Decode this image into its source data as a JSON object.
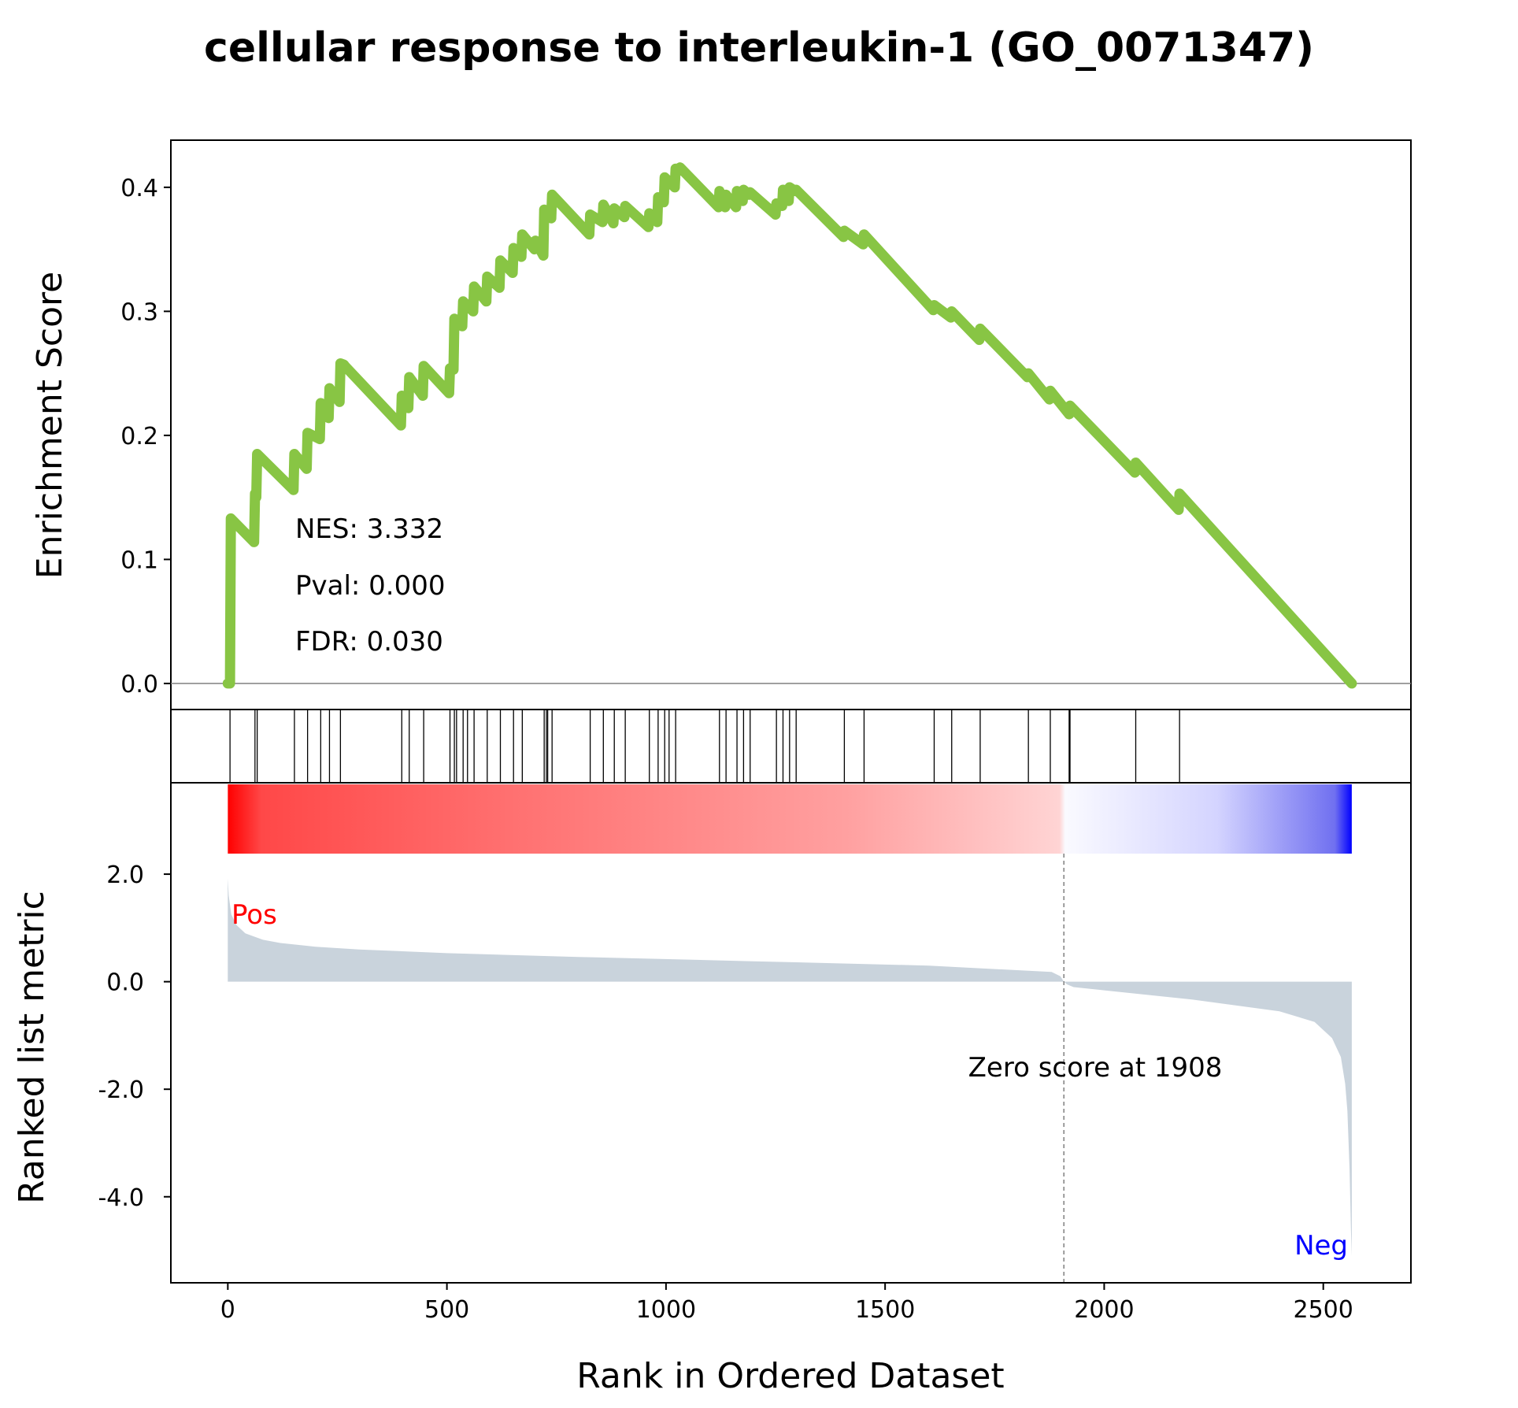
{
  "chart_data": {
    "type": "line",
    "title": "cellular response to interleukin-1 (GO_0071347)",
    "xlabel": "Rank in Ordered Dataset",
    "x_ticks": [
      0,
      500,
      1000,
      1500,
      2000,
      2500
    ],
    "xlim": [
      -130,
      2700
    ],
    "es_panel": {
      "ylabel": "Enrichment Score",
      "y_ticks": [
        "0.0",
        "0.1",
        "0.2",
        "0.3",
        "0.4"
      ],
      "y_tick_values": [
        0.0,
        0.1,
        0.2,
        0.3,
        0.4
      ],
      "ylim": [
        -0.021,
        0.438
      ],
      "line_color": "#88c544",
      "series": [
        {
          "x": [
            0,
            5,
            7,
            60,
            62,
            65,
            67,
            150,
            152,
            180,
            182,
            210,
            212,
            230,
            232,
            255,
            257,
            265,
            267,
            395,
            397,
            412,
            414,
            445,
            447,
            505,
            507,
            515,
            517,
            535,
            537,
            560,
            562,
            590,
            592,
            620,
            622,
            650,
            652,
            670,
            672,
            700,
            702,
            720,
            722,
            738,
            740,
            825,
            827,
            855,
            857,
            880,
            882,
            905,
            907,
            960,
            962,
            980,
            982,
            995,
            997,
            1020,
            1022,
            1030,
            1032,
            1120,
            1122,
            1135,
            1137,
            1160,
            1162,
            1175,
            1177,
            1190,
            1192,
            1250,
            1252,
            1265,
            1267,
            1280,
            1282,
            1295,
            1297,
            1405,
            1407,
            1450,
            1452,
            1610,
            1612,
            1650,
            1652,
            1715,
            1717,
            1825,
            1827,
            1875,
            1877,
            1920,
            1922,
            2070,
            2072,
            2170,
            2172,
            2565
          ],
          "y": [
            0.0,
            0.0,
            0.133,
            0.114,
            0.153,
            0.15,
            0.185,
            0.156,
            0.185,
            0.173,
            0.202,
            0.197,
            0.226,
            0.214,
            0.238,
            0.227,
            0.258,
            0.257,
            0.256,
            0.208,
            0.232,
            0.222,
            0.247,
            0.232,
            0.256,
            0.234,
            0.254,
            0.253,
            0.294,
            0.288,
            0.308,
            0.3,
            0.32,
            0.308,
            0.328,
            0.319,
            0.341,
            0.331,
            0.351,
            0.344,
            0.362,
            0.35,
            0.357,
            0.345,
            0.382,
            0.375,
            0.394,
            0.362,
            0.378,
            0.372,
            0.386,
            0.371,
            0.383,
            0.376,
            0.385,
            0.368,
            0.379,
            0.372,
            0.392,
            0.388,
            0.408,
            0.4,
            0.415,
            0.414,
            0.416,
            0.384,
            0.397,
            0.384,
            0.394,
            0.384,
            0.397,
            0.389,
            0.398,
            0.394,
            0.396,
            0.378,
            0.387,
            0.385,
            0.398,
            0.389,
            0.4,
            0.397,
            0.398,
            0.36,
            0.365,
            0.354,
            0.362,
            0.301,
            0.305,
            0.295,
            0.3,
            0.277,
            0.286,
            0.247,
            0.25,
            0.229,
            0.236,
            0.217,
            0.224,
            0.17,
            0.178,
            0.14,
            0.153,
            0.0
          ]
        }
      ],
      "annotations": [
        "NES: 3.332",
        "Pval: 0.000",
        "FDR: 0.030"
      ]
    },
    "hits_panel": {
      "hit_ranks": [
        5,
        62,
        67,
        152,
        182,
        212,
        232,
        257,
        397,
        414,
        447,
        507,
        517,
        522,
        537,
        547,
        562,
        592,
        622,
        652,
        672,
        722,
        727,
        730,
        740,
        827,
        857,
        882,
        907,
        962,
        982,
        997,
        1007,
        1022,
        1122,
        1137,
        1162,
        1177,
        1192,
        1252,
        1267,
        1282,
        1297,
        1407,
        1452,
        1612,
        1652,
        1717,
        1827,
        1877,
        1920,
        1922,
        2072,
        2172
      ]
    },
    "metric_panel": {
      "ylabel": "Ranked list metric",
      "y_ticks": [
        "2.0",
        "0.0",
        "-2.0",
        "-4.0"
      ],
      "y_tick_values": [
        2.0,
        0.0,
        -2.0,
        -4.0
      ],
      "ylim": [
        -5.6,
        3.7
      ],
      "n_genes": 2565,
      "zero_cross": 1908,
      "zero_label": "Zero score at 1908",
      "pos_label": "Pos",
      "neg_label": "Neg",
      "pos_color": "#ff0000",
      "neg_color": "#0000ff",
      "fill_color": "#c9d3dc",
      "profile_x": [
        0,
        2,
        8,
        20,
        40,
        80,
        120,
        200,
        300,
        500,
        800,
        1200,
        1600,
        1880,
        1900,
        1908,
        1915,
        1930,
        2000,
        2200,
        2400,
        2480,
        2520,
        2540,
        2550,
        2555,
        2560,
        2563,
        2565
      ],
      "profile_y": [
        1.92,
        1.6,
        1.25,
        1.05,
        0.9,
        0.78,
        0.72,
        0.65,
        0.6,
        0.53,
        0.46,
        0.38,
        0.3,
        0.18,
        0.1,
        0.0,
        -0.05,
        -0.1,
        -0.16,
        -0.33,
        -0.55,
        -0.75,
        -1.05,
        -1.4,
        -1.9,
        -2.4,
        -3.5,
        -4.6,
        -5.1
      ]
    }
  }
}
